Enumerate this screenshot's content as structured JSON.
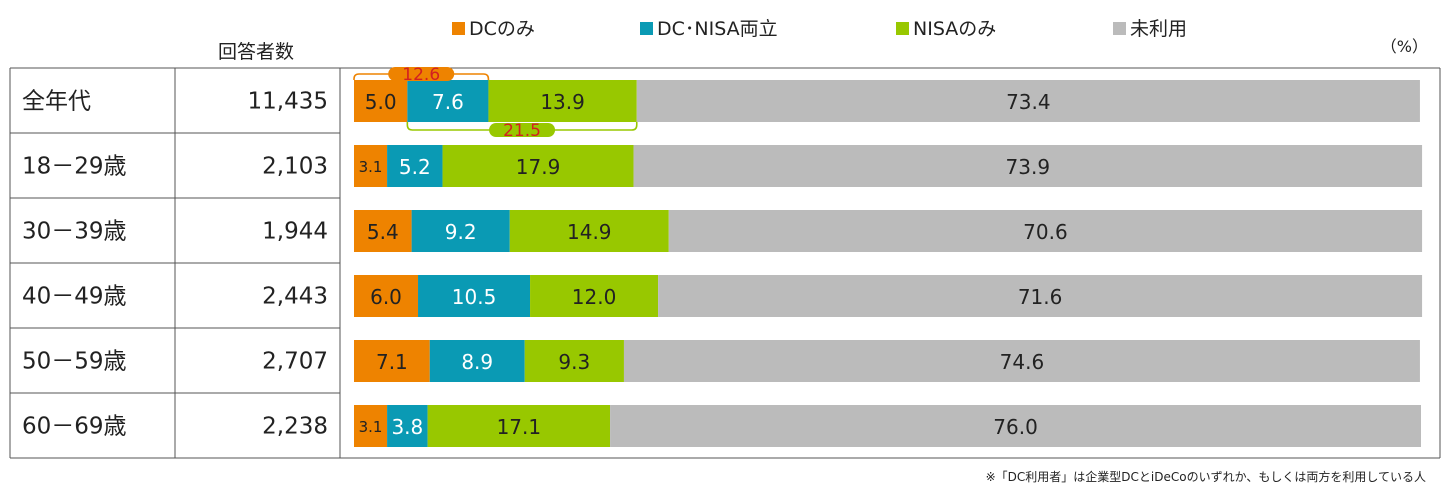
{
  "header": {
    "respondents_label": "回答者数",
    "unit": "（%）"
  },
  "legend": [
    {
      "name": "DCのみ",
      "color": "#ee8300"
    },
    {
      "name": "DC･NISA両立",
      "color": "#0a9ab4"
    },
    {
      "name": "NISAのみ",
      "color": "#98c800"
    },
    {
      "name": "未利用",
      "color": "#bbbbbb"
    }
  ],
  "chart_data": {
    "type": "bar",
    "orientation": "horizontal",
    "stacked": true,
    "xlim": [
      0,
      100
    ],
    "categories": [
      "全年代",
      "18－29歳",
      "30－39歳",
      "40－49歳",
      "50－59歳",
      "60－69歳"
    ],
    "respondents": [
      "11,435",
      "2,103",
      "1,944",
      "2,443",
      "2,707",
      "2,238"
    ],
    "series": [
      {
        "name": "DCのみ",
        "values": [
          5.0,
          3.1,
          5.4,
          6.0,
          7.1,
          3.1
        ]
      },
      {
        "name": "DC･NISA両立",
        "values": [
          7.6,
          5.2,
          9.2,
          10.5,
          8.9,
          3.8
        ]
      },
      {
        "name": "NISAのみ",
        "values": [
          13.9,
          17.9,
          14.9,
          12.0,
          9.3,
          17.1
        ]
      },
      {
        "name": "未利用",
        "values": [
          73.4,
          73.9,
          70.6,
          71.6,
          74.6,
          76.0
        ]
      }
    ],
    "annotations": [
      {
        "label": "12.6",
        "row": 0,
        "from_series": 0,
        "to_series": 1,
        "position": "above",
        "color": "#ee8300"
      },
      {
        "label": "21.5",
        "row": 0,
        "from_series": 1,
        "to_series": 2,
        "position": "below",
        "color": "#98c800"
      }
    ]
  },
  "footnote": "※「DC利用者」は企業型DCとiDeCoのいずれか、もしくは両方を利用している人"
}
